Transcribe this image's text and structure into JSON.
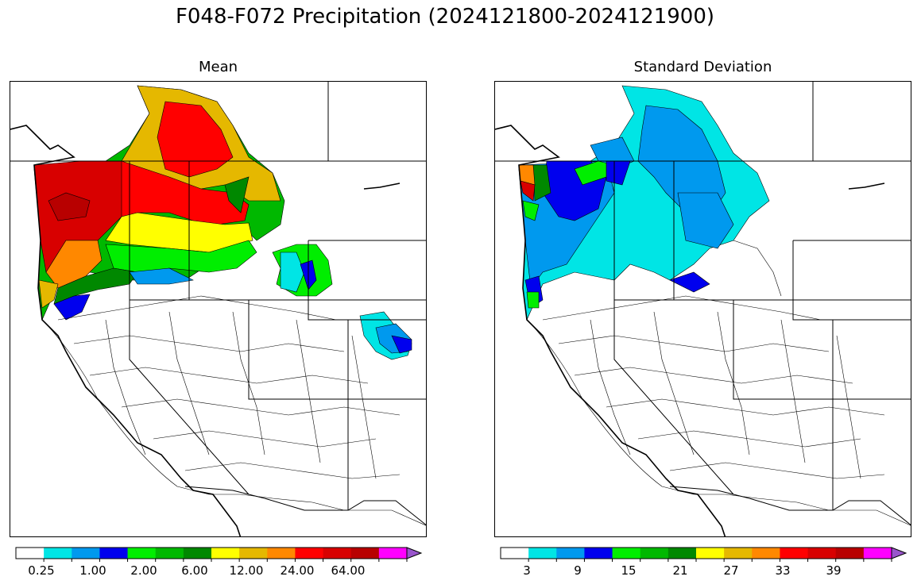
{
  "figure": {
    "title": "F048-F072 Precipitation (2024121800-2024121900)"
  },
  "panels": [
    {
      "title": "Mean",
      "colorbar": {
        "colors": [
          "#ffffff",
          "#00e5e5",
          "#0099ee",
          "#0000ee",
          "#00ee00",
          "#00b800",
          "#008800",
          "#ffff00",
          "#e5b800",
          "#ff8800",
          "#ff0000",
          "#d80000",
          "#b80000",
          "#ff00ff",
          "#9955cc"
        ],
        "tick_labels": [
          "0.25",
          "1.00",
          "2.00",
          "6.00",
          "12.00",
          "24.00",
          "64.00"
        ],
        "extend": "max"
      }
    },
    {
      "title": "Standard Deviation",
      "colorbar": {
        "colors": [
          "#ffffff",
          "#00e5e5",
          "#0099ee",
          "#0000ee",
          "#00ee00",
          "#00b800",
          "#008800",
          "#ffff00",
          "#e5b800",
          "#ff8800",
          "#ff0000",
          "#d80000",
          "#b80000",
          "#ff00ff",
          "#9955cc"
        ],
        "tick_labels": [
          "3",
          "9",
          "15",
          "21",
          "27",
          "33",
          "39"
        ],
        "extend": "max"
      }
    }
  ]
}
